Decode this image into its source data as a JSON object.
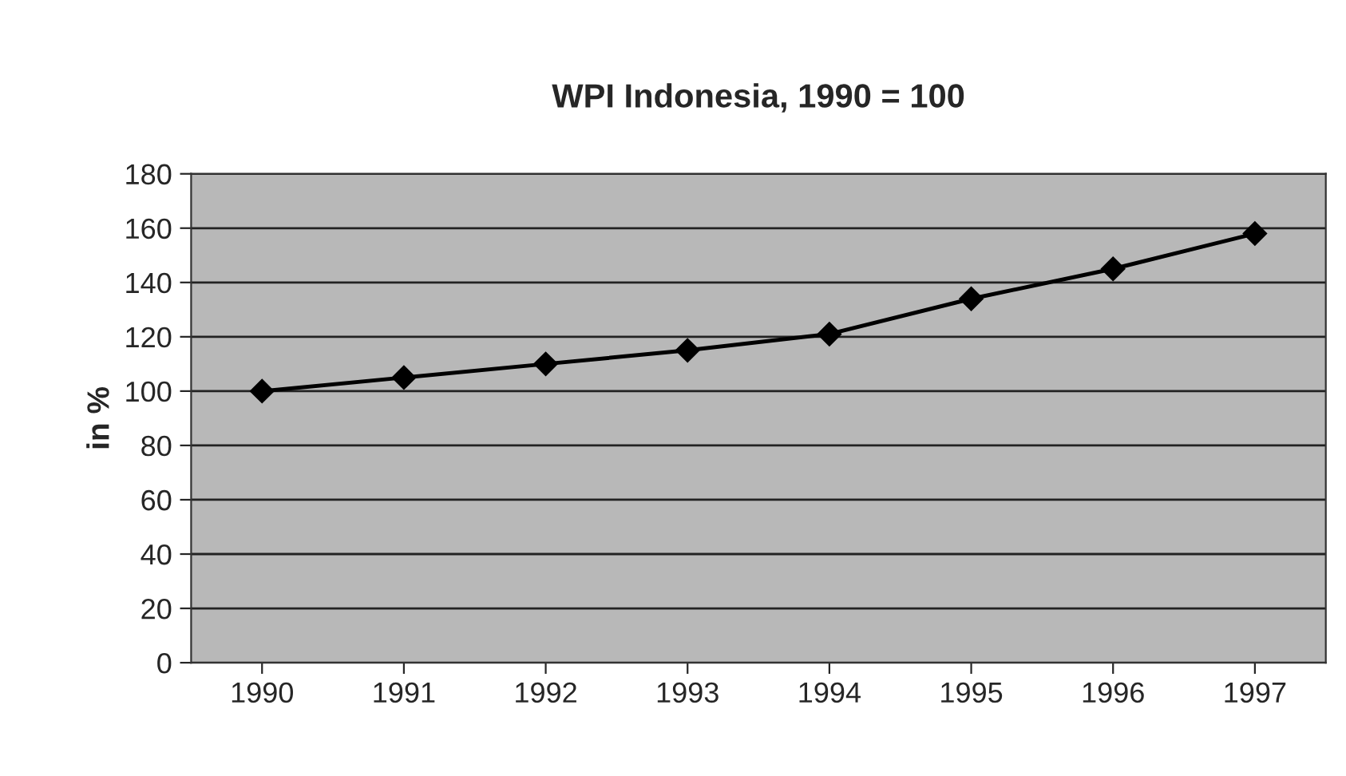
{
  "chart_data": {
    "type": "line",
    "title": "WPI Indonesia, 1990 = 100",
    "ylabel": "in %",
    "categories": [
      "1990",
      "1991",
      "1992",
      "1993",
      "1994",
      "1995",
      "1996",
      "1997"
    ],
    "series": [
      {
        "color": "#000000",
        "values": [
          100,
          105,
          110,
          115,
          121,
          134,
          145,
          158
        ]
      }
    ],
    "ylim": [
      0,
      180
    ],
    "yticks": [
      0,
      20,
      40,
      60,
      80,
      100,
      120,
      140,
      160,
      180
    ],
    "grid": "y",
    "marker": "diamond",
    "line_style": "solid",
    "legend": false
  }
}
